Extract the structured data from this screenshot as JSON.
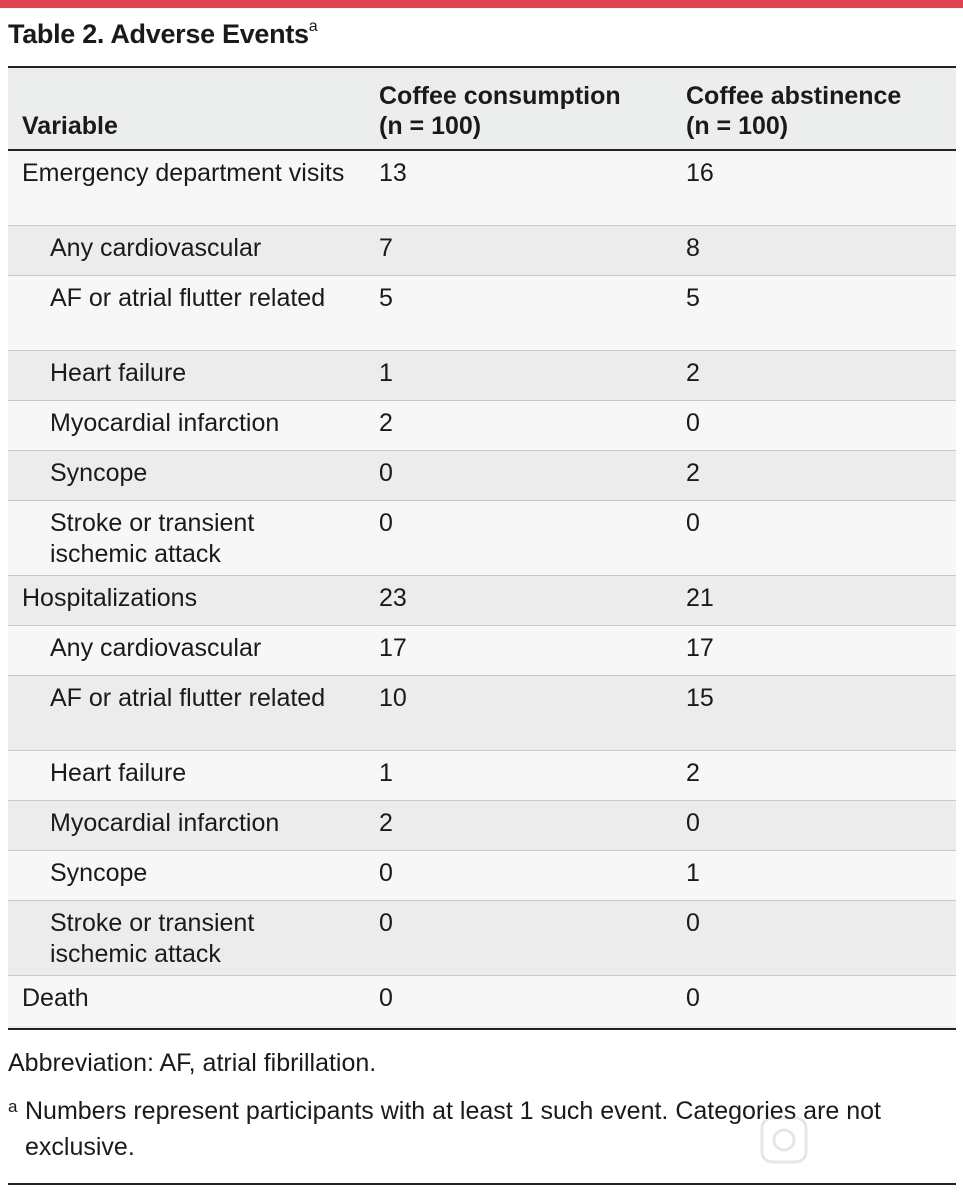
{
  "title": {
    "text": "Table 2. Adverse Events",
    "superscript": "a"
  },
  "headers": {
    "variable": "Variable",
    "col1_line1": "Coffee consumption",
    "col1_line2": "(n = 100)",
    "col2_line1": "Coffee abstinence",
    "col2_line2": "(n = 100)"
  },
  "rows": [
    {
      "variable": "Emergency department visits",
      "col1": "13",
      "col2": "16"
    },
    {
      "variable": "Any cardiovascular",
      "col1": "7",
      "col2": "8"
    },
    {
      "variable": "AF or atrial flutter related",
      "col1": "5",
      "col2": "5"
    },
    {
      "variable": "Heart failure",
      "col1": "1",
      "col2": "2"
    },
    {
      "variable": "Myocardial infarction",
      "col1": "2",
      "col2": "0"
    },
    {
      "variable": "Syncope",
      "col1": "0",
      "col2": "2"
    },
    {
      "variable": "Stroke or transient ischemic attack",
      "col1": "0",
      "col2": "0"
    },
    {
      "variable": "Hospitalizations",
      "col1": "23",
      "col2": "21"
    },
    {
      "variable": "Any cardiovascular",
      "col1": "17",
      "col2": "17"
    },
    {
      "variable": "AF or atrial flutter related",
      "col1": "10",
      "col2": "15"
    },
    {
      "variable": "Heart failure",
      "col1": "1",
      "col2": "2"
    },
    {
      "variable": "Myocardial infarction",
      "col1": "2",
      "col2": "0"
    },
    {
      "variable": "Syncope",
      "col1": "0",
      "col2": "1"
    },
    {
      "variable": "Stroke or transient ischemic attack",
      "col1": "0",
      "col2": "0"
    },
    {
      "variable": "Death",
      "col1": "0",
      "col2": "0"
    }
  ],
  "footnotes": {
    "abbreviation": "Abbreviation: AF, atrial fibrillation.",
    "a_marker": "a",
    "a_text": "Numbers represent participants with at least 1 such event. Categories are not exclusive."
  },
  "colors": {
    "accent_rule": "#e04050"
  }
}
